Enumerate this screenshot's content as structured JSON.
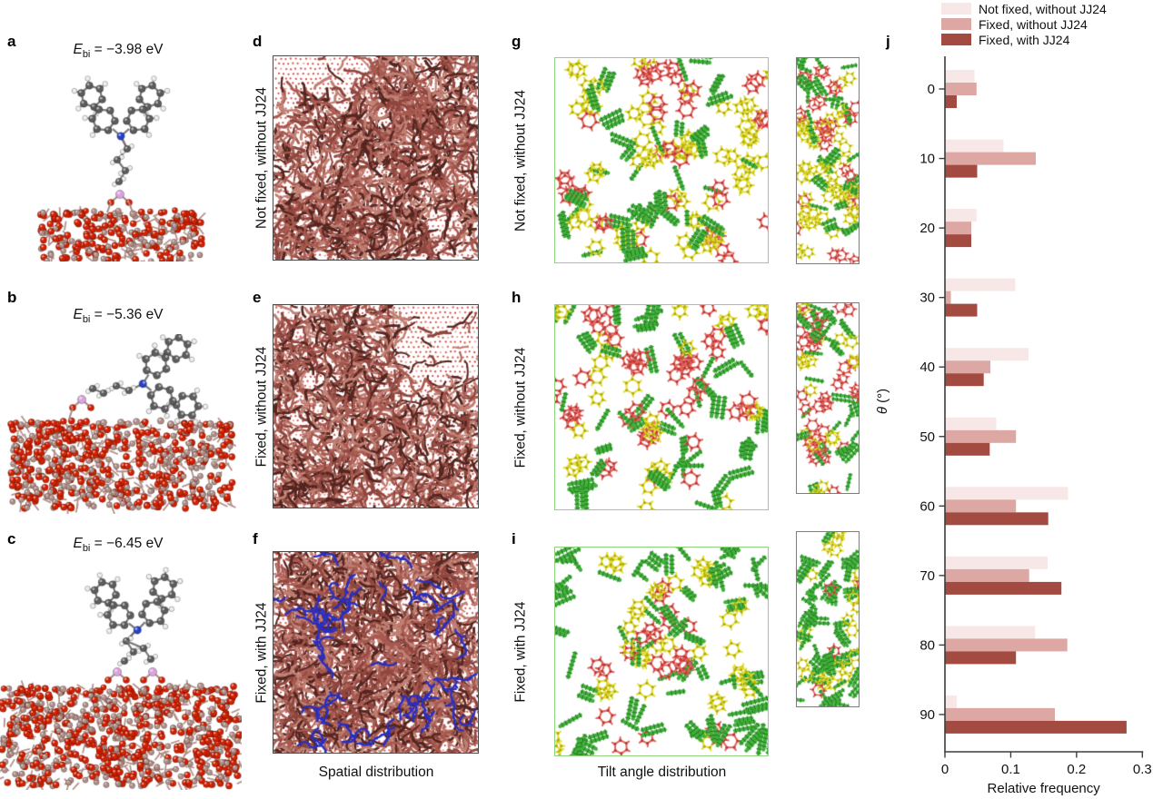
{
  "figure": {
    "spatial_caption": "Spatial distribution",
    "tilt_caption": "Tilt angle distribution"
  },
  "left_panels": [
    {
      "letter": "a",
      "e_sym": "E",
      "e_sub": "bi",
      "e_eq": " = −3.98 eV"
    },
    {
      "letter": "b",
      "e_sym": "E",
      "e_sub": "bi",
      "e_eq": " = −5.36 eV"
    },
    {
      "letter": "c",
      "e_sym": "E",
      "e_sub": "bi",
      "e_eq": " = −6.45 eV"
    }
  ],
  "spatial_panels": [
    {
      "letter": "d",
      "label": "Not fixed, without JJ24"
    },
    {
      "letter": "e",
      "label": "Fixed, without JJ24"
    },
    {
      "letter": "f",
      "label": "Fixed, with JJ24"
    }
  ],
  "tilt_panels": [
    {
      "letter": "g",
      "label": "Not fixed, without JJ24"
    },
    {
      "letter": "h",
      "label": "Fixed, without JJ24"
    },
    {
      "letter": "i",
      "label": "Fixed, with JJ24"
    }
  ],
  "chart_panel_letter": "j",
  "chart_data": {
    "type": "bar",
    "orientation": "horizontal",
    "xlabel": "Relative frequency",
    "ylabel": "θ (°)",
    "xlim": [
      0,
      0.3
    ],
    "xticks": [
      "0",
      "0.1",
      "0.2",
      "0.3"
    ],
    "categories": [
      "0",
      "10",
      "20",
      "30",
      "40",
      "50",
      "60",
      "70",
      "80",
      "90"
    ],
    "legend_position": "top-right",
    "grid": false,
    "series": [
      {
        "name": "Not fixed, without JJ24",
        "color": "#f7e8e7",
        "values": [
          0.045,
          0.089,
          0.048,
          0.107,
          0.127,
          0.078,
          0.187,
          0.156,
          0.137,
          0.018
        ]
      },
      {
        "name": "Fixed, without JJ24",
        "color": "#dda7a3",
        "values": [
          0.048,
          0.138,
          0.04,
          0.009,
          0.069,
          0.108,
          0.108,
          0.128,
          0.186,
          0.167
        ]
      },
      {
        "name": "Fixed, with JJ24",
        "color": "#a44b41",
        "values": [
          0.018,
          0.049,
          0.04,
          0.049,
          0.059,
          0.068,
          0.157,
          0.177,
          0.108,
          0.276
        ]
      }
    ]
  },
  "render_colors": {
    "axis": "#3d3d3d",
    "surface_dot": "#d6524a",
    "mol_red1": "#a85a50",
    "mol_red2": "#8f463e",
    "mol_red3": "#c08074",
    "mol_dark": "#55251f",
    "jj24_blue": "#2a2ec2",
    "tilt_red": "#e4615c",
    "tilt_red_dark": "#bb3a34",
    "tilt_yellow": "#e3dd2f",
    "tilt_yellow_dark": "#b2ad08",
    "tilt_green": "#42b03c",
    "tilt_green_dark": "#237f1e",
    "carbon": "#5c5c5c",
    "hydrogen": "#ececec",
    "nitrogen": "#2740c9",
    "oxygen": "#d42000",
    "silicon": "#b28e86",
    "phosphorus": "#d9a3de"
  }
}
